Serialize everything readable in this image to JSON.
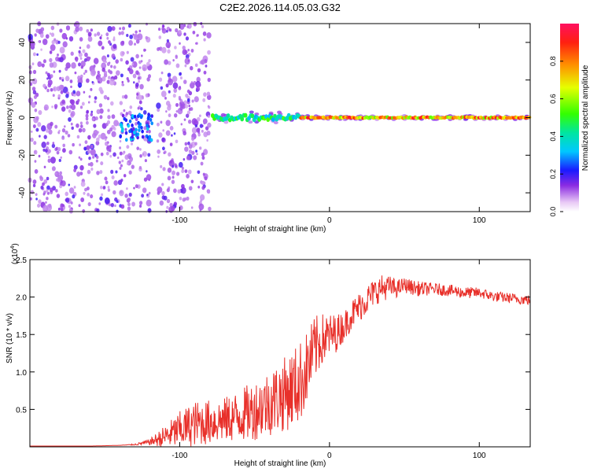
{
  "figure": {
    "title": "C2E2.2026.114.05.03.G32"
  },
  "chart_data": [
    {
      "type": "heatmap",
      "title": "C2E2.2026.114.05.03.G32",
      "xlabel": "Height of straight line (km)",
      "ylabel": "Frequency (Hz)",
      "xlim": [
        -200,
        134
      ],
      "ylim": [
        -50,
        50
      ],
      "xticks": [
        -100,
        0,
        100
      ],
      "yticks": [
        -40,
        -20,
        0,
        20,
        40
      ],
      "colorbar": {
        "label": "Normalized spectral amplitude",
        "range": [
          0,
          1
        ],
        "ticks": [
          "0.0",
          "0.2",
          "0.4",
          "0.6",
          "0.8"
        ]
      },
      "features": [
        {
          "name": "noise-region-left",
          "x_range": [
            -200,
            -120
          ],
          "freq_range": [
            -50,
            50
          ],
          "amplitude": 0.12
        },
        {
          "name": "noise-region-mid",
          "x_range": [
            -115,
            -80
          ],
          "freq_range": [
            -50,
            50
          ],
          "amplitude": 0.15
        },
        {
          "name": "carrier-line",
          "x_range": [
            -78,
            134
          ],
          "freq": 0,
          "amplitude": 0.95
        },
        {
          "name": "scatter-burst",
          "x_range": [
            -140,
            -118
          ],
          "freq_range": [
            -12,
            2
          ],
          "amplitude": 0.3
        }
      ]
    },
    {
      "type": "line",
      "xlabel": "Height of straight line (km)",
      "ylabel": "SNR (10 * v/v)",
      "exponent_label": "(x10",
      "exponent_value": "4",
      "exponent_close": ")",
      "xlim": [
        -200,
        134
      ],
      "ylim": [
        0,
        2.5
      ],
      "xticks": [
        -100,
        0,
        100
      ],
      "yticks": [
        0.5,
        1.0,
        1.5,
        2.0,
        2.5
      ],
      "series": [
        {
          "name": "SNR",
          "color": "#e8302a",
          "x": [
            -200,
            -180,
            -160,
            -140,
            -130,
            -120,
            -110,
            -100,
            -90,
            -80,
            -70,
            -60,
            -50,
            -40,
            -30,
            -20,
            -15,
            -10,
            -5,
            0,
            5,
            10,
            15,
            20,
            25,
            30,
            35,
            40,
            45,
            50,
            55,
            60,
            70,
            80,
            90,
            100,
            110,
            120,
            134
          ],
          "values": [
            0.01,
            0.01,
            0.01,
            0.02,
            0.03,
            0.06,
            0.12,
            0.2,
            0.28,
            0.3,
            0.33,
            0.38,
            0.45,
            0.55,
            0.65,
            0.8,
            1.0,
            1.25,
            1.4,
            1.45,
            1.5,
            1.6,
            1.75,
            1.85,
            1.95,
            2.05,
            2.1,
            2.12,
            2.1,
            2.15,
            2.12,
            2.1,
            2.1,
            2.08,
            2.05,
            2.05,
            2.0,
            1.98,
            1.95
          ],
          "noise": [
            0,
            0,
            0,
            0,
            0.01,
            0.04,
            0.15,
            0.25,
            0.3,
            0.3,
            0.3,
            0.35,
            0.4,
            0.45,
            0.5,
            0.55,
            0.5,
            0.45,
            0.35,
            0.3,
            0.25,
            0.2,
            0.2,
            0.2,
            0.2,
            0.18,
            0.18,
            0.15,
            0.12,
            0.1,
            0.1,
            0.1,
            0.08,
            0.08,
            0.08,
            0.07,
            0.07,
            0.07,
            0.07
          ]
        }
      ]
    }
  ],
  "colors": {
    "axis": "#000000",
    "carrier": "#e81a1a",
    "noise_purple": "#7a2bd6"
  }
}
